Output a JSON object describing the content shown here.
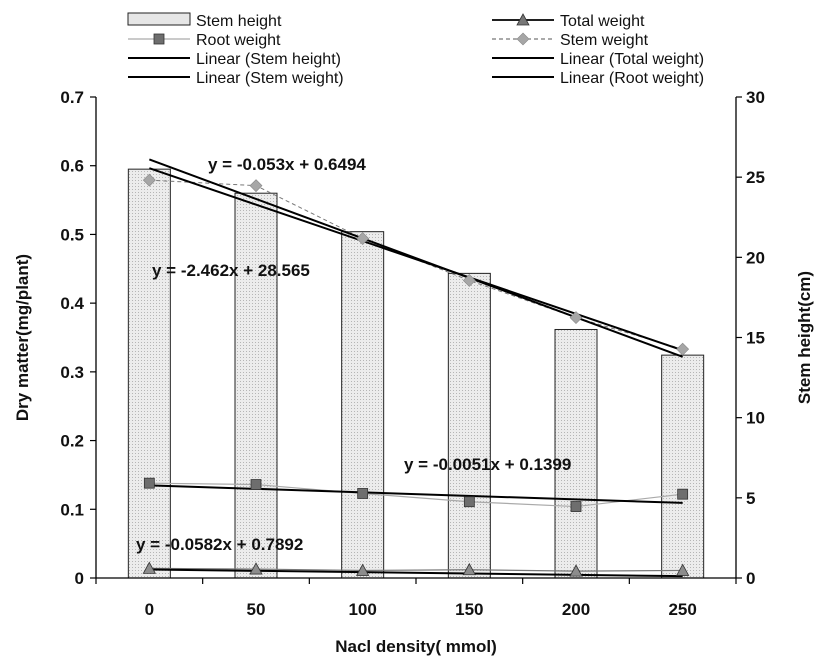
{
  "chart_data": {
    "type": "bar",
    "title": "",
    "xlabel": "Nacl density( mmol)",
    "ylabel": "Dry matter(mg/plant)",
    "y2label": "Stem height(cm)",
    "categories": [
      "0",
      "50",
      "100",
      "150",
      "200",
      "250"
    ],
    "ylim": [
      0,
      0.7
    ],
    "y_ticks": [
      "0",
      "0.1",
      "0.2",
      "0.3",
      "0.4",
      "0.5",
      "0.6",
      "0.7"
    ],
    "y2lim": [
      0,
      30
    ],
    "y2_ticks": [
      "0",
      "5",
      "10",
      "15",
      "20",
      "25",
      "30"
    ],
    "series": [
      {
        "name": "Stem height",
        "kind": "bar",
        "axis": "right",
        "values": [
          25.5,
          24.0,
          21.6,
          19.0,
          15.5,
          13.9
        ]
      },
      {
        "name": "Total weight",
        "kind": "line",
        "marker": "triangle",
        "axis": "left",
        "values": [
          0.014,
          0.013,
          0.011,
          0.012,
          0.01,
          0.011
        ]
      },
      {
        "name": "Root weight",
        "kind": "line",
        "marker": "square",
        "axis": "left",
        "values": [
          0.138,
          0.136,
          0.123,
          0.111,
          0.104,
          0.122
        ]
      },
      {
        "name": "Stem weight",
        "kind": "line",
        "marker": "diamond",
        "dashed": true,
        "axis": "left",
        "values": [
          0.579,
          0.571,
          0.494,
          0.433,
          0.379,
          0.333
        ]
      }
    ],
    "trendlines": [
      {
        "name": "Linear (Stem height)",
        "axis": "right",
        "slope": -2.462,
        "intercept": 28.565,
        "equation": "y = -2.462x + 28.565"
      },
      {
        "name": "Linear (Stem weight)",
        "axis": "left",
        "slope": -0.053,
        "intercept": 0.6494,
        "equation": "y = -0.053x + 0.6494"
      },
      {
        "name": "Linear (Total weight)",
        "axis": "left",
        "slope": -0.0582,
        "intercept": 0.7892,
        "equation": "y = -0.0582x + 0.7892",
        "scaled_display": true
      },
      {
        "name": "Linear (Root weight)",
        "axis": "left",
        "slope": -0.0051,
        "intercept": 0.1399,
        "equation": "y = -0.0051x + 0.1399"
      }
    ],
    "legend": {
      "placement": "top",
      "entries": [
        "Stem height",
        "Total weight",
        "Root weight",
        "Stem weight",
        "Linear (Stem height)",
        "Linear (Total weight)",
        "Linear (Stem weight)",
        "Linear (Root weight)"
      ]
    },
    "colors": {
      "bar_fill": "#e6e6e6",
      "bar_stroke": "#222222",
      "trend": "#000000",
      "root": "#666666",
      "stem_weight": "#999999"
    },
    "grid": false
  }
}
